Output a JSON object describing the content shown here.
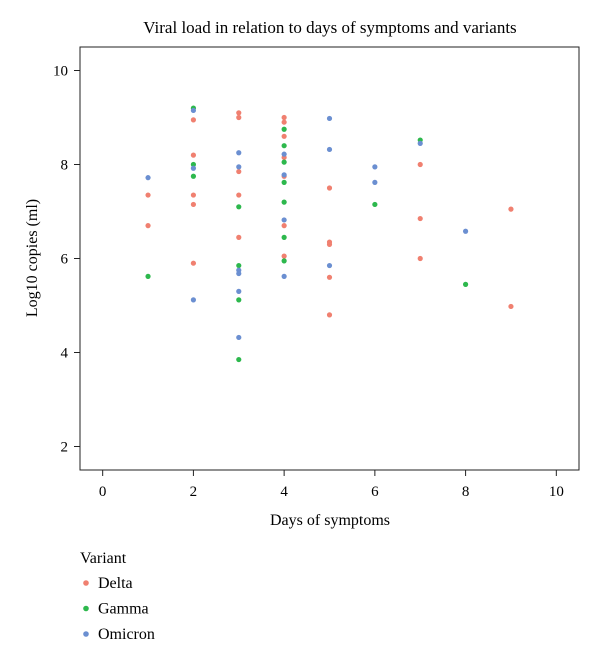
{
  "chart_data": {
    "type": "scatter",
    "title": "Viral load in relation to days of symptoms and variants",
    "xlabel": "Days of symptoms",
    "ylabel": "Log10 copies (ml)",
    "xlim": [
      -0.5,
      10.5
    ],
    "ylim": [
      1.5,
      10.5
    ],
    "xticks": [
      0,
      2,
      4,
      6,
      8,
      10
    ],
    "yticks": [
      2,
      4,
      6,
      8,
      10
    ],
    "grid": false,
    "legend": {
      "title": "Variant",
      "placement": "bottom-left"
    },
    "series": [
      {
        "name": "Delta",
        "color": "#f08070",
        "points": [
          [
            1,
            7.35
          ],
          [
            1,
            6.7
          ],
          [
            2,
            8.95
          ],
          [
            2,
            8.2
          ],
          [
            2,
            7.35
          ],
          [
            2,
            7.15
          ],
          [
            2,
            5.9
          ],
          [
            3,
            9.1
          ],
          [
            3,
            9.0
          ],
          [
            3,
            7.85
          ],
          [
            3,
            7.35
          ],
          [
            3,
            6.45
          ],
          [
            4,
            9.0
          ],
          [
            4,
            8.9
          ],
          [
            4,
            8.6
          ],
          [
            4,
            8.15
          ],
          [
            4,
            7.75
          ],
          [
            4,
            6.7
          ],
          [
            4,
            6.05
          ],
          [
            5,
            7.5
          ],
          [
            5,
            6.35
          ],
          [
            5,
            6.3
          ],
          [
            5,
            5.6
          ],
          [
            5,
            4.8
          ],
          [
            7,
            8.0
          ],
          [
            7,
            6.85
          ],
          [
            7,
            6.0
          ],
          [
            9,
            7.05
          ],
          [
            9,
            4.98
          ]
        ]
      },
      {
        "name": "Gamma",
        "color": "#2db84d",
        "points": [
          [
            1,
            5.62
          ],
          [
            2,
            9.2
          ],
          [
            2,
            8.0
          ],
          [
            2,
            7.75
          ],
          [
            3,
            7.1
          ],
          [
            3,
            5.85
          ],
          [
            3,
            5.12
          ],
          [
            3,
            3.85
          ],
          [
            4,
            8.75
          ],
          [
            4,
            8.4
          ],
          [
            4,
            8.05
          ],
          [
            4,
            7.62
          ],
          [
            4,
            7.2
          ],
          [
            4,
            6.45
          ],
          [
            4,
            5.95
          ],
          [
            6,
            7.15
          ],
          [
            7,
            8.52
          ],
          [
            8,
            5.45
          ]
        ]
      },
      {
        "name": "Omicron",
        "color": "#6b8fd1",
        "points": [
          [
            1,
            7.72
          ],
          [
            2,
            9.15
          ],
          [
            2,
            7.92
          ],
          [
            2,
            5.12
          ],
          [
            3,
            8.25
          ],
          [
            3,
            7.95
          ],
          [
            3,
            5.75
          ],
          [
            3,
            5.68
          ],
          [
            3,
            5.3
          ],
          [
            3,
            4.32
          ],
          [
            4,
            8.22
          ],
          [
            4,
            7.78
          ],
          [
            4,
            6.82
          ],
          [
            4,
            5.62
          ],
          [
            5,
            8.98
          ],
          [
            5,
            8.32
          ],
          [
            5,
            5.85
          ],
          [
            6,
            7.95
          ],
          [
            6,
            7.62
          ],
          [
            7,
            8.45
          ],
          [
            8,
            6.58
          ]
        ]
      }
    ]
  }
}
